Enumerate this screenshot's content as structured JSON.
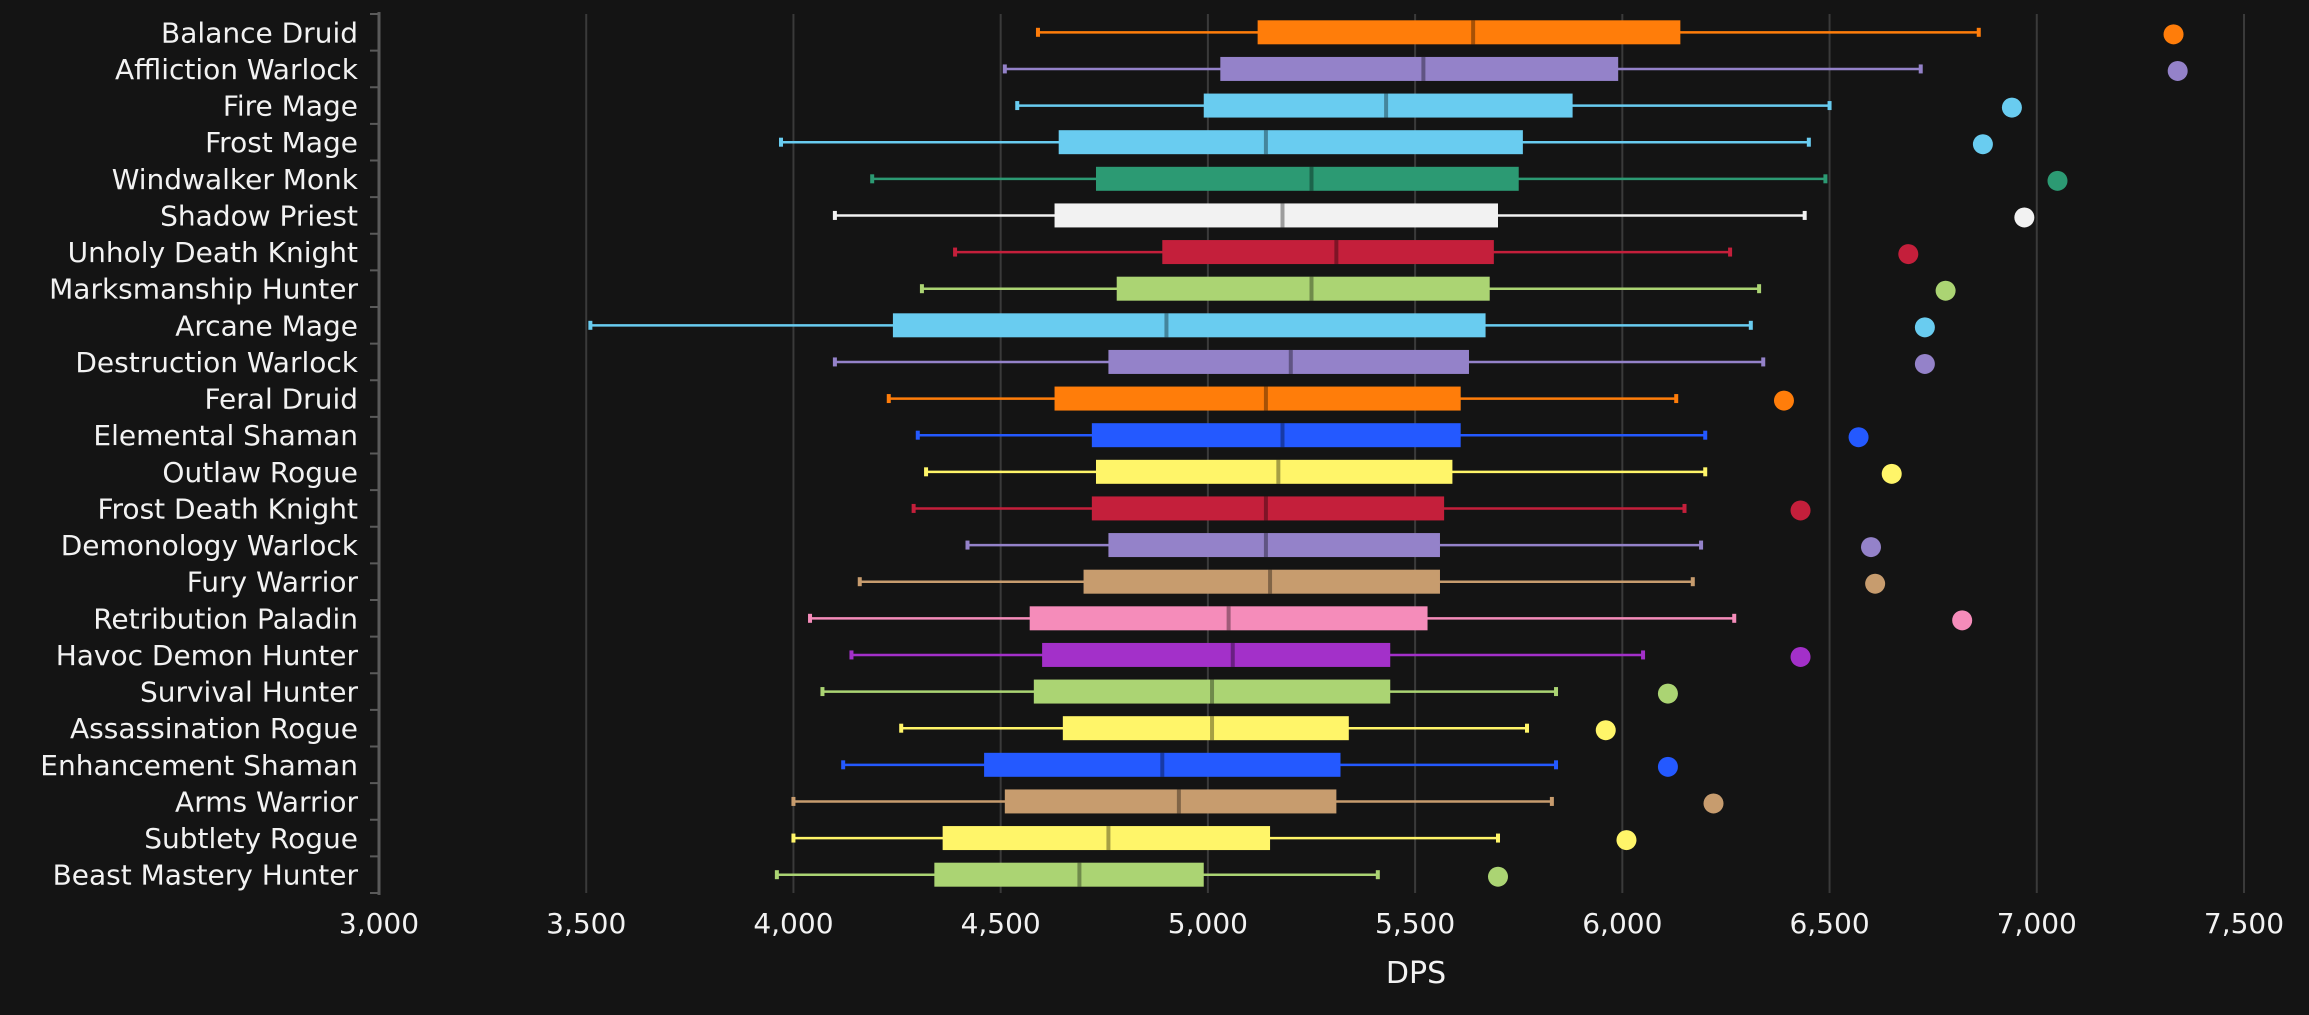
{
  "chart_data": {
    "type": "boxplot",
    "xlabel": "DPS",
    "xlim": [
      3000,
      7500
    ],
    "xticks": [
      3000,
      3500,
      4000,
      4500,
      5000,
      5500,
      6000,
      6500,
      7000,
      7500
    ],
    "xtick_labels": [
      "3,000",
      "3,500",
      "4,000",
      "4,500",
      "5,000",
      "5,500",
      "6,000",
      "6,500",
      "7,000",
      "7,500"
    ],
    "grid": true,
    "series": [
      {
        "name": "Balance Druid",
        "color": "#ff7d0a",
        "min": 4590,
        "q1": 5120,
        "median": 5640,
        "q3": 6140,
        "max": 6860,
        "outlier": 7330
      },
      {
        "name": "Affliction Warlock",
        "color": "#9482c9",
        "min": 4510,
        "q1": 5030,
        "median": 5520,
        "q3": 5990,
        "max": 6720,
        "outlier": 7340
      },
      {
        "name": "Fire Mage",
        "color": "#69ccf0",
        "min": 4540,
        "q1": 4990,
        "median": 5430,
        "q3": 5880,
        "max": 6500,
        "outlier": 6940
      },
      {
        "name": "Frost Mage",
        "color": "#69ccf0",
        "min": 3970,
        "q1": 4640,
        "median": 5140,
        "q3": 5760,
        "max": 6450,
        "outlier": 6870
      },
      {
        "name": "Windwalker Monk",
        "color": "#2c9a73",
        "min": 4190,
        "q1": 4730,
        "median": 5250,
        "q3": 5750,
        "max": 6490,
        "outlier": 7050
      },
      {
        "name": "Shadow Priest",
        "color": "#f2f2f2",
        "min": 4100,
        "q1": 4630,
        "median": 5180,
        "q3": 5700,
        "max": 6440,
        "outlier": 6970
      },
      {
        "name": "Unholy Death Knight",
        "color": "#c41f3b",
        "min": 4390,
        "q1": 4890,
        "median": 5310,
        "q3": 5690,
        "max": 6260,
        "outlier": 6690
      },
      {
        "name": "Marksmanship Hunter",
        "color": "#abd473",
        "min": 4310,
        "q1": 4780,
        "median": 5250,
        "q3": 5680,
        "max": 6330,
        "outlier": 6780
      },
      {
        "name": "Arcane Mage",
        "color": "#69ccf0",
        "min": 3510,
        "q1": 4240,
        "median": 4900,
        "q3": 5670,
        "max": 6310,
        "outlier": 6730
      },
      {
        "name": "Destruction Warlock",
        "color": "#9482c9",
        "min": 4100,
        "q1": 4760,
        "median": 5200,
        "q3": 5630,
        "max": 6340,
        "outlier": 6730
      },
      {
        "name": "Feral Druid",
        "color": "#ff7d0a",
        "min": 4230,
        "q1": 4630,
        "median": 5140,
        "q3": 5610,
        "max": 6130,
        "outlier": 6390
      },
      {
        "name": "Elemental Shaman",
        "color": "#2459ff",
        "min": 4300,
        "q1": 4720,
        "median": 5180,
        "q3": 5610,
        "max": 6200,
        "outlier": 6570
      },
      {
        "name": "Outlaw Rogue",
        "color": "#fff569",
        "min": 4320,
        "q1": 4730,
        "median": 5170,
        "q3": 5590,
        "max": 6200,
        "outlier": 6650
      },
      {
        "name": "Frost Death Knight",
        "color": "#c41f3b",
        "min": 4290,
        "q1": 4720,
        "median": 5140,
        "q3": 5570,
        "max": 6150,
        "outlier": 6430
      },
      {
        "name": "Demonology Warlock",
        "color": "#9482c9",
        "min": 4420,
        "q1": 4760,
        "median": 5140,
        "q3": 5560,
        "max": 6190,
        "outlier": 6600
      },
      {
        "name": "Fury Warrior",
        "color": "#c79c6e",
        "min": 4160,
        "q1": 4700,
        "median": 5150,
        "q3": 5560,
        "max": 6170,
        "outlier": 6610
      },
      {
        "name": "Retribution Paladin",
        "color": "#f58cba",
        "min": 4040,
        "q1": 4570,
        "median": 5050,
        "q3": 5530,
        "max": 6270,
        "outlier": 6820
      },
      {
        "name": "Havoc Demon Hunter",
        "color": "#a330c9",
        "min": 4140,
        "q1": 4600,
        "median": 5060,
        "q3": 5440,
        "max": 6050,
        "outlier": 6430
      },
      {
        "name": "Survival Hunter",
        "color": "#abd473",
        "min": 4070,
        "q1": 4580,
        "median": 5010,
        "q3": 5440,
        "max": 5840,
        "outlier": 6110
      },
      {
        "name": "Assassination Rogue",
        "color": "#fff569",
        "min": 4260,
        "q1": 4650,
        "median": 5010,
        "q3": 5340,
        "max": 5770,
        "outlier": 5960
      },
      {
        "name": "Enhancement Shaman",
        "color": "#2459ff",
        "min": 4120,
        "q1": 4460,
        "median": 4890,
        "q3": 5320,
        "max": 5840,
        "outlier": 6110
      },
      {
        "name": "Arms Warrior",
        "color": "#c79c6e",
        "min": 4000,
        "q1": 4510,
        "median": 4930,
        "q3": 5310,
        "max": 5830,
        "outlier": 6220
      },
      {
        "name": "Subtlety Rogue",
        "color": "#fff569",
        "min": 4000,
        "q1": 4360,
        "median": 4760,
        "q3": 5150,
        "max": 5700,
        "outlier": 6010
      },
      {
        "name": "Beast Mastery Hunter",
        "color": "#abd473",
        "min": 3960,
        "q1": 4340,
        "median": 4690,
        "q3": 4990,
        "max": 5410,
        "outlier": 5700
      }
    ]
  }
}
